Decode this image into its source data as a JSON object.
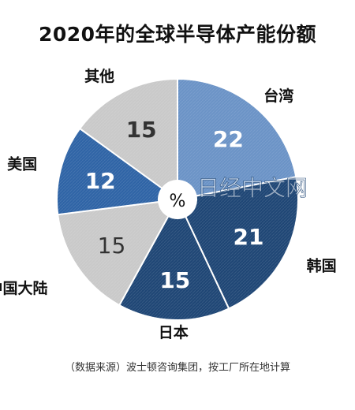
{
  "title": "2020年的全球半导体产能份额",
  "source": "（数据来源）波士顿咨询集团，按工厂所在地计算",
  "center_label": "%",
  "watermark": "日经中文网",
  "colors": {
    "taiwan": "#6B93C6",
    "korea": "#1F4675",
    "japan": "#1F4675",
    "china": "#C9C9C9",
    "usa": "#2F64A6",
    "other": "#C9C9C9"
  },
  "chart_data": {
    "type": "pie",
    "title": "2020年的全球半导体产能份额",
    "unit": "%",
    "slices": [
      {
        "label": "台湾",
        "value": 22
      },
      {
        "label": "韩国",
        "value": 21
      },
      {
        "label": "日本",
        "value": 15
      },
      {
        "label": "中国大陆",
        "value": 15
      },
      {
        "label": "美国",
        "value": 12
      },
      {
        "label": "其他",
        "value": 15
      }
    ]
  }
}
